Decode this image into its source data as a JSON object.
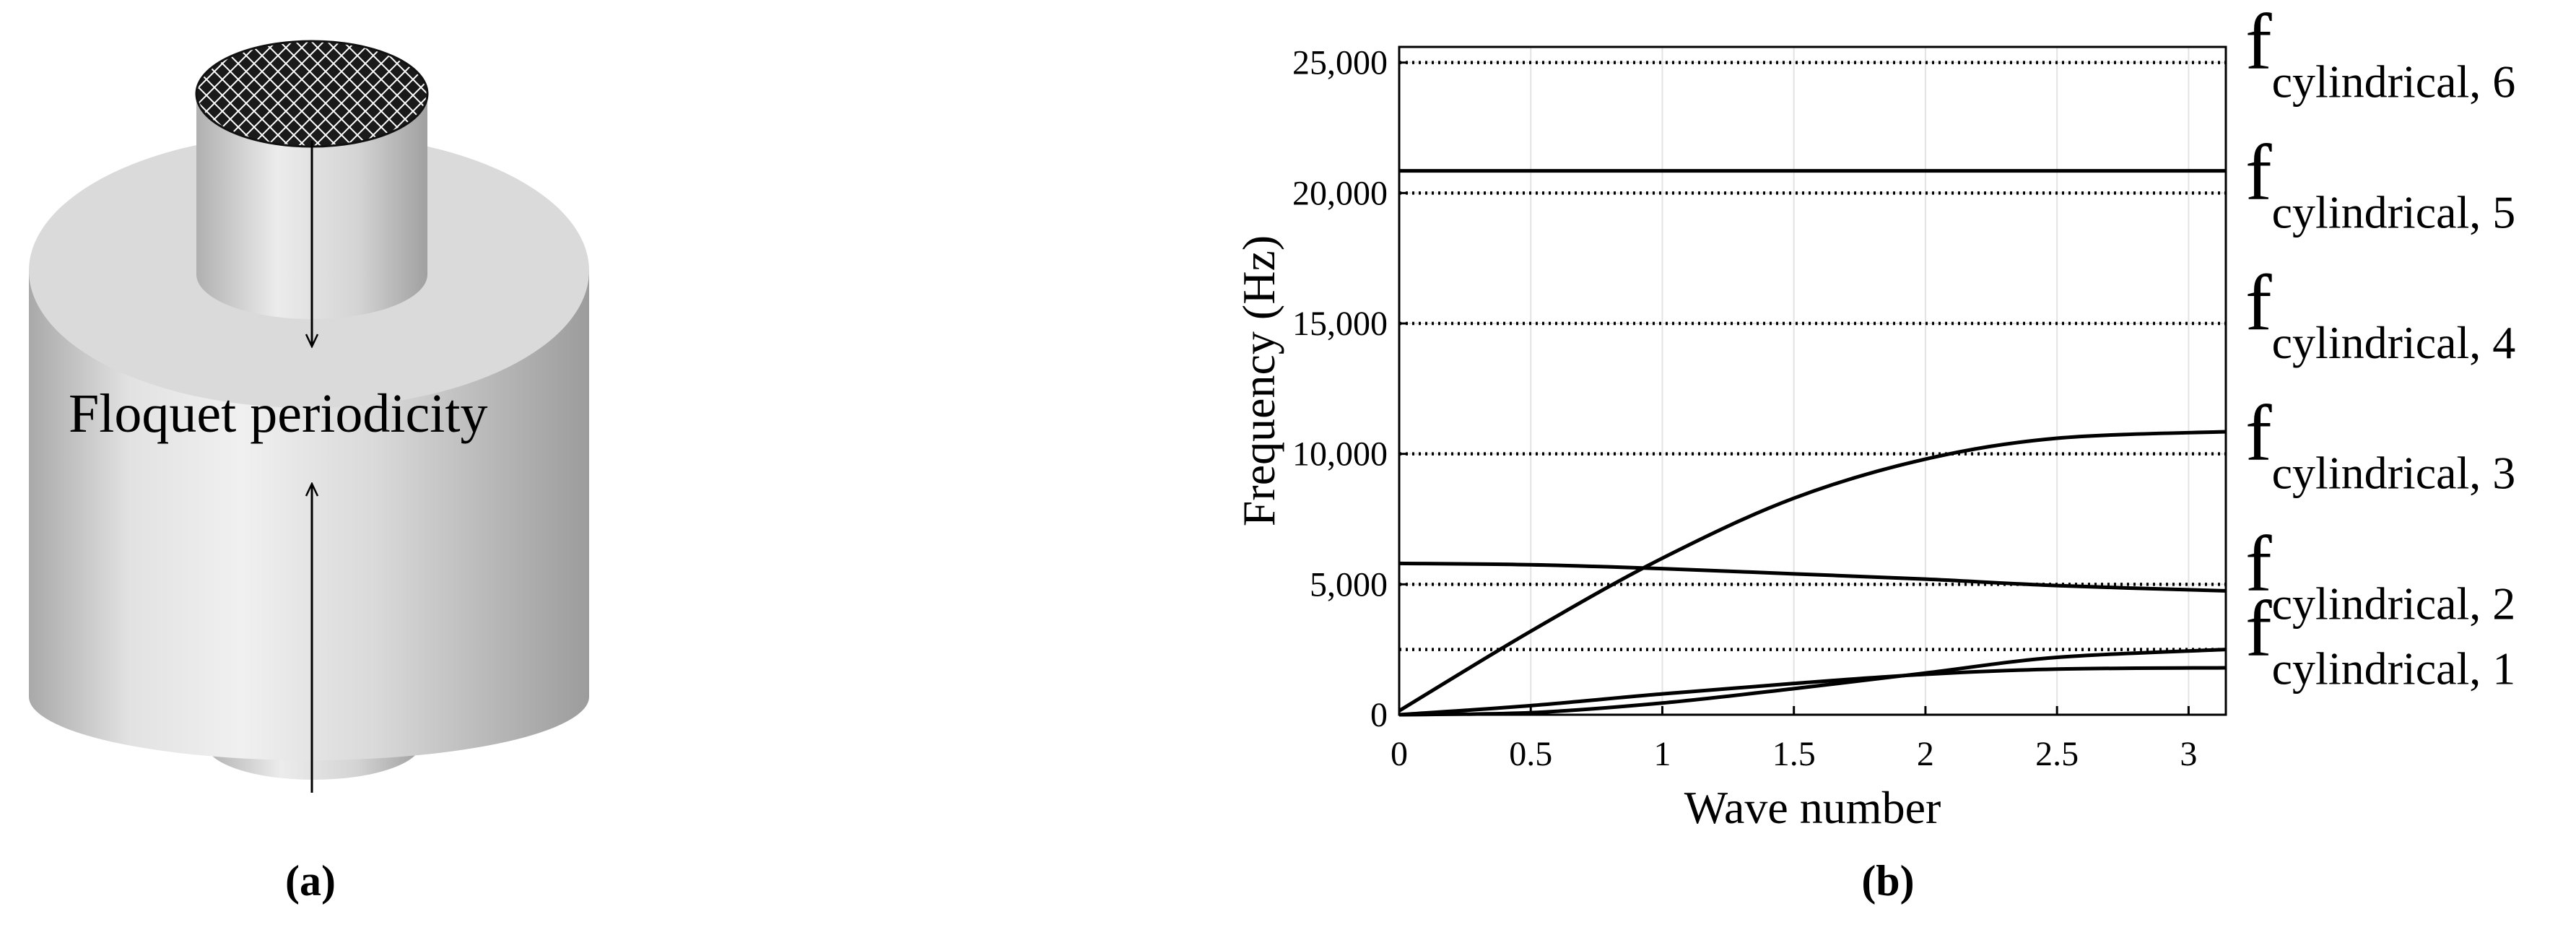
{
  "panel_a": {
    "caption": "(a)",
    "label": "Floquet periodicity"
  },
  "panel_b": {
    "caption": "(b)"
  },
  "chart_data": {
    "type": "line",
    "xlabel": "Wave number",
    "ylabel": "Frequency (Hz)",
    "xlim": [
      0,
      3.1416
    ],
    "ylim": [
      0,
      25600
    ],
    "xticks": [
      0,
      0.5,
      1,
      1.5,
      2,
      2.5,
      3
    ],
    "xtick_labels": [
      "0",
      "0.5",
      "1",
      "1.5",
      "2",
      "2.5",
      "3"
    ],
    "yticks": [
      0,
      5000,
      10000,
      15000,
      20000,
      25000
    ],
    "ytick_labels": [
      "0",
      "5,000",
      "10,000",
      "15,000",
      "20,000",
      "25,000"
    ],
    "grid": true,
    "series": [
      {
        "x": [
          0,
          0.5,
          1,
          1.5,
          2,
          2.5,
          3.1416
        ],
        "values": [
          20850,
          20850,
          20850,
          20850,
          20850,
          20850,
          20850
        ]
      },
      {
        "x": [
          0,
          0.5,
          1,
          1.5,
          2,
          2.5,
          3.1416
        ],
        "values": [
          150,
          3200,
          6000,
          8300,
          9800,
          10600,
          10850
        ]
      },
      {
        "x": [
          0,
          0.5,
          1,
          1.5,
          2,
          2.5,
          3.1416
        ],
        "values": [
          5800,
          5750,
          5600,
          5400,
          5200,
          4950,
          4750
        ]
      },
      {
        "x": [
          0,
          0.5,
          1,
          1.5,
          2,
          2.5,
          3.1416
        ],
        "values": [
          0,
          350,
          800,
          1200,
          1550,
          1750,
          1800
        ]
      },
      {
        "x": [
          0,
          0.5,
          1,
          1.5,
          2,
          2.5,
          3.1416
        ],
        "values": [
          0,
          80,
          450,
          1000,
          1600,
          2200,
          2500
        ]
      }
    ],
    "reference_lines": [
      {
        "value": 2500,
        "label_main": "f",
        "label_sub": "cylindrical, 1"
      },
      {
        "value": 5000,
        "label_main": "f",
        "label_sub": "cylindrical, 2"
      },
      {
        "value": 10000,
        "label_main": "f",
        "label_sub": "cylindrical, 3"
      },
      {
        "value": 15000,
        "label_main": "f",
        "label_sub": "cylindrical, 4"
      },
      {
        "value": 20000,
        "label_main": "f",
        "label_sub": "cylindrical, 5"
      },
      {
        "value": 25000,
        "label_main": "f",
        "label_sub": "cylindrical, 6"
      }
    ]
  }
}
